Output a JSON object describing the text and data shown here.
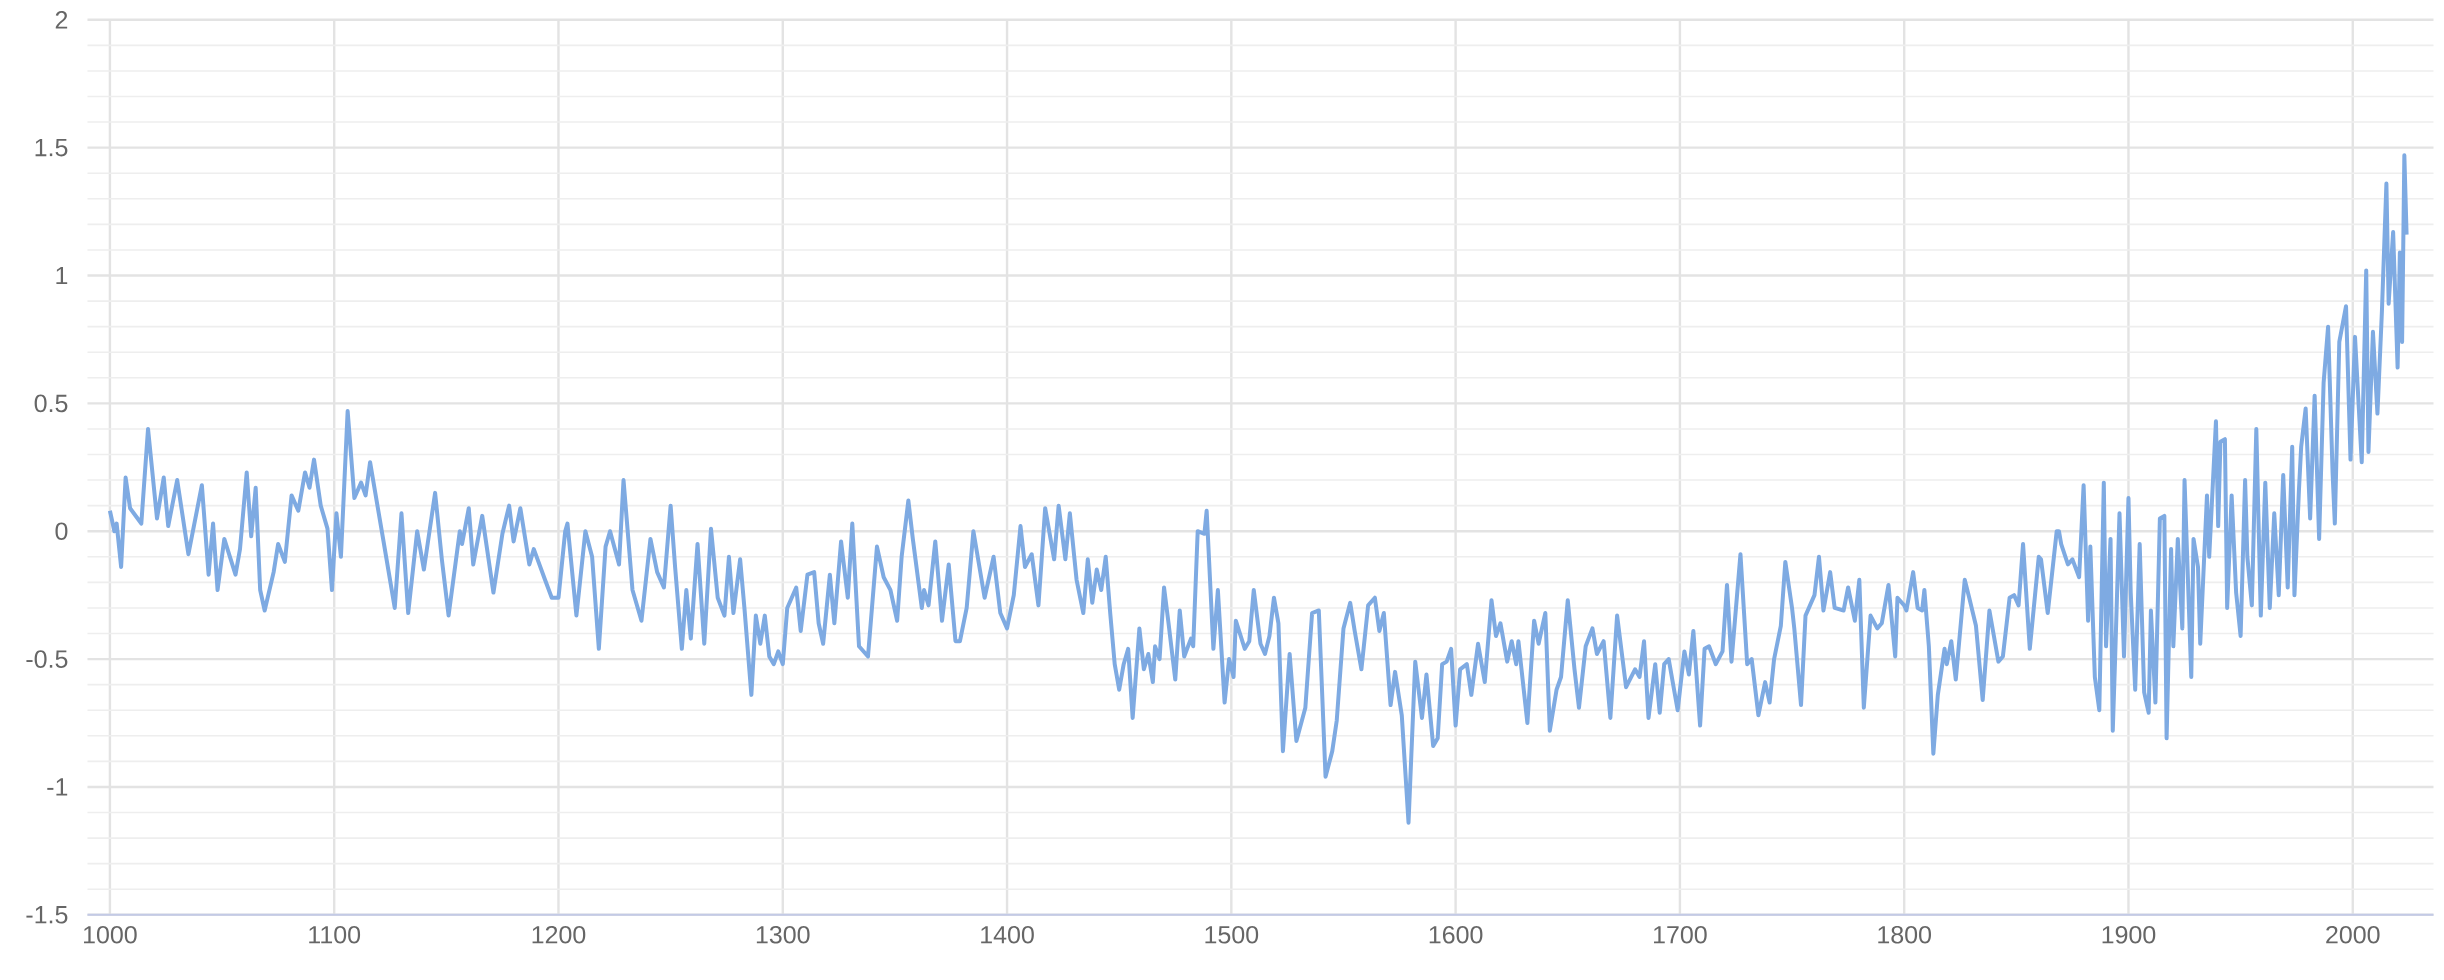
{
  "chart_data": {
    "type": "line",
    "color": "#7eaae2",
    "marker": "none",
    "grid": true,
    "xlim": [
      990,
      2036
    ],
    "xticks": [
      1000,
      1100,
      1200,
      1300,
      1400,
      1500,
      1600,
      1700,
      1800,
      1900,
      2000
    ],
    "ylim": [
      -1.5,
      2
    ],
    "yticks": [
      -1.5,
      -1,
      -0.5,
      0,
      0.5,
      1,
      1.5,
      2
    ],
    "x": [
      1000,
      1002,
      1003,
      1005,
      1007,
      1009,
      1014,
      1017,
      1021,
      1024,
      1026,
      1030,
      1035,
      1041,
      1044,
      1046,
      1048,
      1051,
      1056,
      1058,
      1061,
      1063,
      1065,
      1067,
      1069,
      1073,
      1075,
      1078,
      1081,
      1084,
      1087,
      1089,
      1091,
      1094,
      1097,
      1099,
      1101,
      1103,
      1106,
      1109,
      1112,
      1114,
      1116,
      1122,
      1127,
      1130,
      1133,
      1137,
      1140,
      1145,
      1148,
      1151,
      1156,
      1157,
      1160,
      1162,
      1166,
      1171,
      1175,
      1178,
      1180,
      1183,
      1187,
      1189,
      1194,
      1197,
      1200,
      1203,
      1204,
      1208,
      1212,
      1215,
      1218,
      1221,
      1223,
      1227,
      1229,
      1233,
      1237,
      1241,
      1244,
      1247,
      1250,
      1252,
      1255,
      1257,
      1259,
      1262,
      1265,
      1268,
      1271,
      1274,
      1276,
      1278,
      1281,
      1283,
      1286,
      1288,
      1290,
      1292,
      1294,
      1296,
      1298,
      1300,
      1302,
      1306,
      1308,
      1311,
      1314,
      1316,
      1318,
      1321,
      1323,
      1326,
      1329,
      1331,
      1334,
      1338,
      1342,
      1345,
      1348,
      1351,
      1353,
      1356,
      1358,
      1362,
      1363,
      1365,
      1368,
      1371,
      1374,
      1377,
      1379,
      1382,
      1385,
      1390,
      1394,
      1397,
      1400,
      1403,
      1406,
      1408,
      1411,
      1414,
      1417,
      1421,
      1423,
      1426,
      1428,
      1431,
      1434,
      1436,
      1438,
      1440,
      1442,
      1444,
      1446,
      1448,
      1450,
      1452,
      1454,
      1456,
      1459,
      1461,
      1463,
      1465,
      1466,
      1468,
      1470,
      1472,
      1475,
      1477,
      1479,
      1482,
      1483,
      1485,
      1488,
      1489,
      1492,
      1494,
      1497,
      1499,
      1501,
      1502,
      1506,
      1508,
      1510,
      1513,
      1515,
      1517,
      1519,
      1521,
      1523,
      1526,
      1529,
      1533,
      1536,
      1539,
      1542,
      1545,
      1547,
      1550,
      1553,
      1555,
      1558,
      1561,
      1564,
      1566,
      1568,
      1571,
      1573,
      1576,
      1579,
      1582,
      1585,
      1587,
      1590,
      1592,
      1594,
      1596,
      1598,
      1600,
      1602,
      1605,
      1607,
      1610,
      1613,
      1616,
      1618,
      1620,
      1623,
      1625,
      1627,
      1628,
      1632,
      1635,
      1637,
      1640,
      1642,
      1645,
      1647,
      1650,
      1653,
      1655,
      1658,
      1661,
      1663,
      1666,
      1669,
      1672,
      1676,
      1680,
      1682,
      1684,
      1686,
      1689,
      1691,
      1693,
      1695,
      1699,
      1702,
      1704,
      1706,
      1709,
      1711,
      1713,
      1716,
      1719,
      1721,
      1723,
      1727,
      1730,
      1732,
      1735,
      1738,
      1740,
      1742,
      1745,
      1747,
      1750,
      1751,
      1754,
      1756,
      1760,
      1762,
      1764,
      1767,
      1769,
      1773,
      1775,
      1778,
      1780,
      1782,
      1785,
      1788,
      1790,
      1793,
      1796,
      1797,
      1800,
      1801,
      1804,
      1806,
      1808,
      1809,
      1811,
      1813,
      1815,
      1818,
      1819,
      1821,
      1823,
      1827,
      1829,
      1832,
      1835,
      1838,
      1842,
      1844,
      1847,
      1849,
      1851,
      1853,
      1856,
      1860,
      1861,
      1864,
      1868,
      1869,
      1870,
      1873,
      1875,
      1878,
      1880,
      1882,
      1883,
      1885,
      1887,
      1889,
      1890,
      1892,
      1893,
      1894,
      1896,
      1898,
      1900,
      1901,
      1903,
      1905,
      1907,
      1909,
      1910,
      1912,
      1914,
      1916,
      1917,
      1919,
      1920,
      1922,
      1924,
      1925,
      1928,
      1929,
      1931,
      1932,
      1935,
      1936,
      1939,
      1940,
      1941,
      1943,
      1944,
      1946,
      1948,
      1950,
      1952,
      1953,
      1955,
      1957,
      1959,
      1961,
      1963,
      1965,
      1967,
      1969,
      1971,
      1973,
      1974,
      1976,
      1977,
      1979,
      1981,
      1983,
      1985,
      1987,
      1989,
      1991,
      1992,
      1994,
      1997,
      1999,
      2001,
      2004,
      2006,
      2007,
      2009,
      2011,
      2013,
      2015,
      2016,
      2018,
      2020,
      2021,
      2022,
      2023,
      2024
    ],
    "values": [
      0.08,
      0,
      0.03,
      -0.14,
      0.21,
      0.09,
      0.03,
      0.4,
      0.05,
      0.21,
      0.02,
      0.2,
      -0.09,
      0.18,
      -0.17,
      0.03,
      -0.23,
      -0.03,
      -0.17,
      -0.07,
      0.23,
      -0.02,
      0.17,
      -0.23,
      -0.31,
      -0.16,
      -0.05,
      -0.12,
      0.14,
      0.08,
      0.23,
      0.17,
      0.28,
      0.1,
      0.01,
      -0.23,
      0.07,
      -0.1,
      0.47,
      0.13,
      0.19,
      0.14,
      0.27,
      -0.04,
      -0.3,
      0.07,
      -0.32,
      0,
      -0.15,
      0.15,
      -0.11,
      -0.33,
      0,
      -0.05,
      0.09,
      -0.13,
      0.06,
      -0.24,
      -0.01,
      0.1,
      -0.04,
      0.09,
      -0.13,
      -0.07,
      -0.19,
      -0.26,
      -0.26,
      0,
      0.03,
      -0.33,
      0,
      -0.1,
      -0.46,
      -0.06,
      0,
      -0.13,
      0.2,
      -0.23,
      -0.35,
      -0.03,
      -0.16,
      -0.22,
      0.1,
      -0.14,
      -0.46,
      -0.23,
      -0.42,
      -0.05,
      -0.44,
      0.01,
      -0.26,
      -0.33,
      -0.1,
      -0.32,
      -0.11,
      -0.31,
      -0.64,
      -0.33,
      -0.44,
      -0.33,
      -0.49,
      -0.52,
      -0.47,
      -0.52,
      -0.3,
      -0.22,
      -0.39,
      -0.17,
      -0.16,
      -0.36,
      -0.44,
      -0.17,
      -0.36,
      -0.04,
      -0.26,
      0.03,
      -0.45,
      -0.49,
      -0.06,
      -0.18,
      -0.23,
      -0.35,
      -0.1,
      0.12,
      -0.03,
      -0.3,
      -0.23,
      -0.29,
      -0.04,
      -0.35,
      -0.13,
      -0.43,
      -0.43,
      -0.3,
      0,
      -0.26,
      -0.1,
      -0.32,
      -0.38,
      -0.25,
      0.02,
      -0.14,
      -0.09,
      -0.29,
      0.09,
      -0.11,
      0.1,
      -0.11,
      0.07,
      -0.19,
      -0.32,
      -0.11,
      -0.28,
      -0.15,
      -0.23,
      -0.1,
      -0.32,
      -0.52,
      -0.62,
      -0.52,
      -0.46,
      -0.73,
      -0.38,
      -0.54,
      -0.48,
      -0.59,
      -0.45,
      -0.5,
      -0.22,
      -0.36,
      -0.58,
      -0.31,
      -0.49,
      -0.42,
      -0.45,
      0,
      -0.01,
      0.08,
      -0.46,
      -0.23,
      -0.67,
      -0.5,
      -0.57,
      -0.35,
      -0.46,
      -0.43,
      -0.23,
      -0.44,
      -0.48,
      -0.41,
      -0.26,
      -0.36,
      -0.86,
      -0.48,
      -0.82,
      -0.69,
      -0.32,
      -0.31,
      -0.96,
      -0.86,
      -0.74,
      -0.38,
      -0.28,
      -0.39,
      -0.54,
      -0.29,
      -0.26,
      -0.39,
      -0.32,
      -0.68,
      -0.55,
      -0.72,
      -1.14,
      -0.51,
      -0.73,
      -0.56,
      -0.84,
      -0.81,
      -0.52,
      -0.51,
      -0.46,
      -0.76,
      -0.54,
      -0.52,
      -0.64,
      -0.44,
      -0.59,
      -0.27,
      -0.41,
      -0.36,
      -0.51,
      -0.43,
      -0.52,
      -0.43,
      -0.75,
      -0.35,
      -0.44,
      -0.32,
      -0.78,
      -0.62,
      -0.57,
      -0.27,
      -0.54,
      -0.69,
      -0.45,
      -0.38,
      -0.48,
      -0.43,
      -0.73,
      -0.33,
      -0.61,
      -0.54,
      -0.57,
      -0.43,
      -0.73,
      -0.52,
      -0.71,
      -0.52,
      -0.5,
      -0.7,
      -0.47,
      -0.56,
      -0.39,
      -0.76,
      -0.46,
      -0.45,
      -0.52,
      -0.47,
      -0.21,
      -0.51,
      -0.09,
      -0.52,
      -0.5,
      -0.72,
      -0.59,
      -0.67,
      -0.5,
      -0.37,
      -0.12,
      -0.3,
      -0.38,
      -0.68,
      -0.33,
      -0.25,
      -0.1,
      -0.31,
      -0.16,
      -0.3,
      -0.31,
      -0.22,
      -0.35,
      -0.19,
      -0.69,
      -0.33,
      -0.38,
      -0.36,
      -0.21,
      -0.49,
      -0.26,
      -0.29,
      -0.31,
      -0.16,
      -0.3,
      -0.31,
      -0.23,
      -0.45,
      -0.87,
      -0.64,
      -0.46,
      -0.52,
      -0.43,
      -0.58,
      -0.19,
      -0.26,
      -0.37,
      -0.66,
      -0.31,
      -0.51,
      -0.49,
      -0.26,
      -0.25,
      -0.29,
      -0.05,
      -0.46,
      -0.1,
      -0.11,
      -0.32,
      0,
      0,
      -0.05,
      -0.13,
      -0.11,
      -0.18,
      0.18,
      -0.35,
      -0.06,
      -0.57,
      -0.7,
      0.19,
      -0.45,
      -0.03,
      -0.78,
      -0.51,
      0.07,
      -0.49,
      0.13,
      -0.24,
      -0.62,
      -0.05,
      -0.63,
      -0.71,
      -0.31,
      -0.67,
      0.05,
      0.06,
      -0.81,
      -0.07,
      -0.45,
      -0.03,
      -0.38,
      0.2,
      -0.57,
      -0.03,
      -0.14,
      -0.44,
      0.14,
      -0.1,
      0.43,
      0.02,
      0.35,
      0.36,
      -0.3,
      0.14,
      -0.24,
      -0.41,
      0.2,
      -0.1,
      -0.29,
      0.4,
      -0.33,
      0.19,
      -0.3,
      0.07,
      -0.25,
      0.22,
      -0.22,
      0.33,
      -0.25,
      0.16,
      0.33,
      0.48,
      0.05,
      0.53,
      -0.03,
      0.58,
      0.8,
      0.23,
      0.03,
      0.74,
      0.88,
      0.28,
      0.76,
      0.27,
      1.02,
      0.31,
      0.78,
      0.46,
      0.86,
      1.36,
      0.89,
      1.17,
      0.64,
      1.09,
      0.74,
      1.47,
      1.16
    ]
  }
}
